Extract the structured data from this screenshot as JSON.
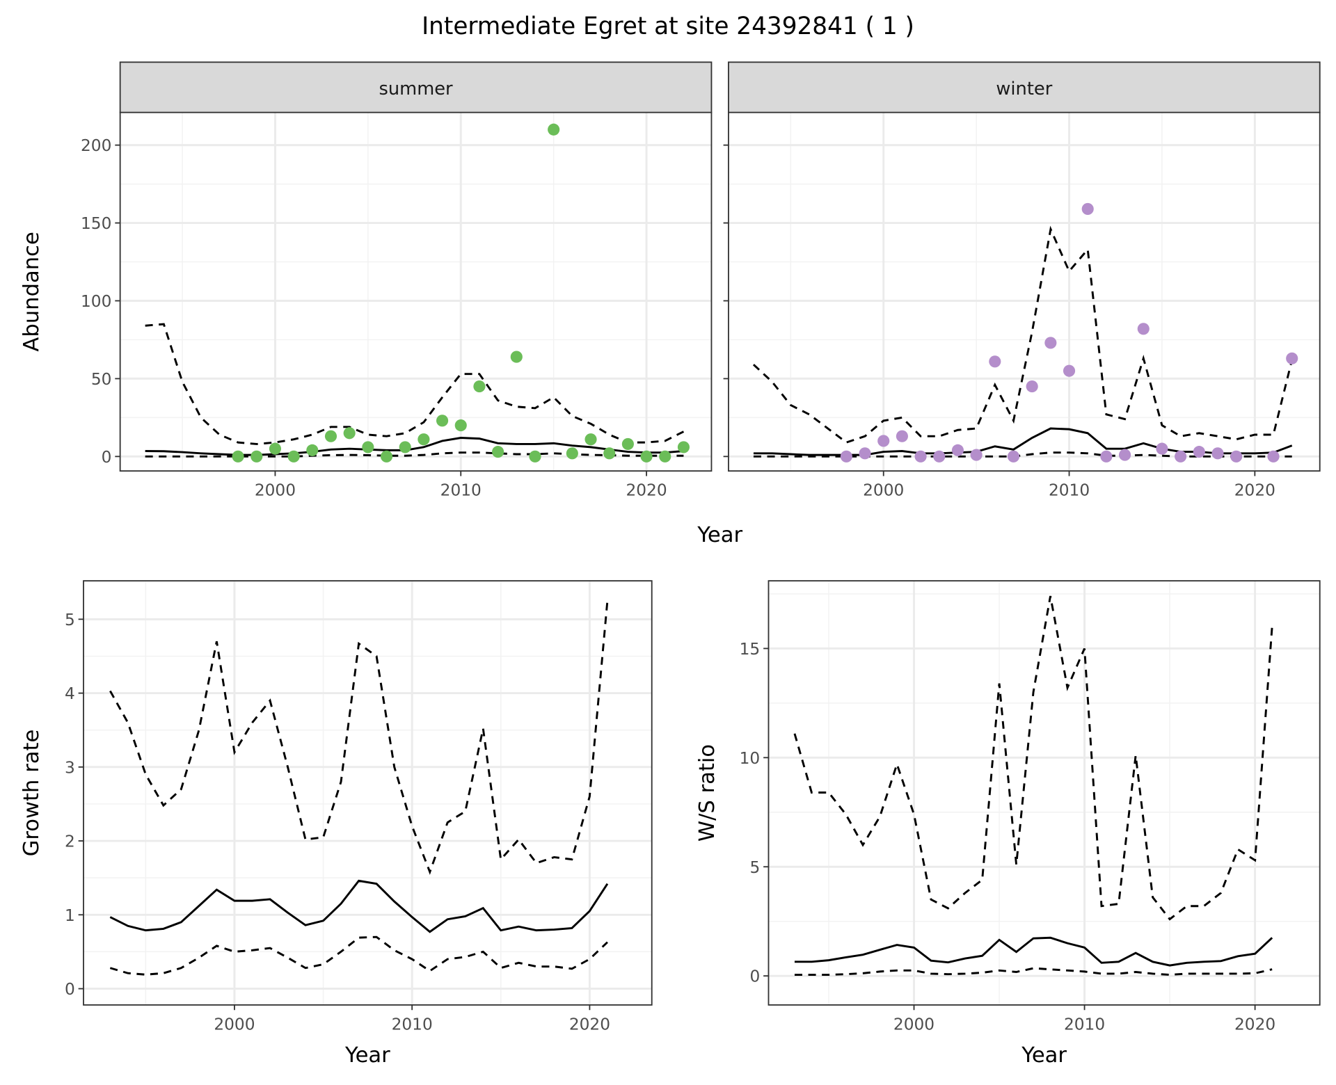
{
  "title": "Intermediate Egret at site 24392841 ( 1 )",
  "colors": {
    "summer": "#6bbd58",
    "winter": "#b48ecb"
  },
  "chart_data": [
    {
      "id": "summer",
      "type": "line+scatter",
      "strip": "summer",
      "xlabel": "",
      "ylabel": "Abundance",
      "xlim": [
        1991.65,
        2023.5
      ],
      "ylim": [
        -9.3,
        221
      ],
      "xticks": [
        2000,
        2010,
        2020
      ],
      "xtick_labels": [
        "2000",
        "2010",
        "2020"
      ],
      "yticks": [
        0,
        50,
        100,
        150,
        200
      ],
      "ytick_labels": [
        "0",
        "50",
        "100",
        "150",
        "200"
      ],
      "point_color": "summer",
      "line_x": [
        1993,
        1994,
        1995,
        1996,
        1997,
        1998,
        1999,
        2000,
        2001,
        2002,
        2003,
        2004,
        2005,
        2006,
        2007,
        2008,
        2009,
        2010,
        2011,
        2012,
        2013,
        2014,
        2015,
        2016,
        2017,
        2018,
        2019,
        2020,
        2021,
        2022
      ],
      "upper": [
        84,
        85,
        48,
        25,
        14,
        9,
        8,
        9,
        11,
        14,
        19,
        19,
        14,
        13,
        15,
        22,
        38,
        53,
        53,
        36,
        32,
        31,
        38,
        26,
        21,
        14,
        9,
        9,
        10,
        16
      ],
      "mean": [
        3.5,
        3.4,
        2.8,
        2,
        1.5,
        1,
        1,
        1.5,
        2,
        3,
        4.5,
        5,
        4.5,
        4,
        4,
        6,
        10,
        12,
        11.5,
        8.5,
        8,
        8,
        8.5,
        7,
        6,
        4.5,
        3,
        2.5,
        2.5,
        3.5
      ],
      "lower": [
        0,
        0,
        0,
        0,
        0,
        0,
        0,
        0,
        0,
        0.5,
        0.8,
        1,
        0.8,
        0.5,
        0.5,
        1,
        2,
        2.5,
        2.5,
        2,
        1.5,
        1.5,
        2,
        1.5,
        1,
        0.8,
        0.5,
        0.5,
        0.5,
        0.5
      ],
      "points_x": [
        1998,
        1999,
        2000,
        2001,
        2002,
        2003,
        2004,
        2005,
        2006,
        2007,
        2008,
        2009,
        2010,
        2011,
        2012,
        2013,
        2014,
        2015,
        2016,
        2017,
        2018,
        2019,
        2020,
        2021,
        2022
      ],
      "points_y": [
        0,
        0,
        5,
        0,
        4,
        13,
        15,
        6,
        0,
        6,
        11,
        23,
        20,
        45,
        3,
        64,
        0,
        210,
        2,
        11,
        2,
        8,
        0,
        0,
        6
      ]
    },
    {
      "id": "winter",
      "type": "line+scatter",
      "strip": "winter",
      "xlabel": "",
      "ylabel": "",
      "xlim": [
        1991.65,
        2023.5
      ],
      "ylim": [
        -9.3,
        221
      ],
      "xticks": [
        2000,
        2010,
        2020
      ],
      "xtick_labels": [
        "2000",
        "2010",
        "2020"
      ],
      "yticks": [
        0,
        50,
        100,
        150,
        200
      ],
      "ytick_labels": [],
      "point_color": "winter",
      "line_x": [
        1993,
        1994,
        1995,
        1996,
        1997,
        1998,
        1999,
        2000,
        2001,
        2002,
        2003,
        2004,
        2005,
        2006,
        2007,
        2008,
        2009,
        2010,
        2011,
        2012,
        2013,
        2014,
        2015,
        2016,
        2017,
        2018,
        2019,
        2020,
        2021,
        2022
      ],
      "upper": [
        59,
        48,
        33,
        27,
        18,
        9,
        13,
        23,
        25,
        13,
        13,
        17,
        18,
        46,
        23,
        80,
        146,
        119,
        133,
        27,
        24,
        63,
        20,
        13,
        15,
        13,
        11,
        14,
        14,
        62
      ],
      "mean": [
        2,
        2,
        1.5,
        1,
        1,
        1,
        1,
        3,
        3.5,
        2,
        2,
        2.5,
        3,
        6.5,
        4.5,
        12,
        18,
        17.5,
        15,
        5,
        5,
        8.5,
        5,
        3,
        3,
        2,
        2,
        2,
        2.5,
        7
      ],
      "lower": [
        0,
        0,
        0,
        0,
        0,
        0,
        0,
        0,
        0,
        0,
        0,
        0,
        0,
        0,
        0,
        1.5,
        2.5,
        2.5,
        2,
        0.5,
        0.5,
        1,
        0.5,
        0,
        0,
        0,
        0,
        0,
        0,
        0
      ],
      "points_x": [
        1998,
        1999,
        2000,
        2001,
        2002,
        2003,
        2004,
        2005,
        2006,
        2007,
        2008,
        2009,
        2010,
        2011,
        2012,
        2013,
        2014,
        2015,
        2016,
        2017,
        2018,
        2019,
        2021,
        2022
      ],
      "points_y": [
        0,
        2,
        10,
        13,
        0,
        0,
        4,
        1,
        61,
        0,
        45,
        73,
        55,
        159,
        0,
        1,
        82,
        5,
        0,
        3,
        2,
        0,
        0,
        63
      ]
    },
    {
      "id": "growth",
      "type": "line",
      "xlabel": "Year",
      "ylabel": "Growth rate",
      "xlim": [
        1991.5,
        2023.5
      ],
      "ylim": [
        -0.22,
        5.52
      ],
      "xticks": [
        2000,
        2010,
        2020
      ],
      "xtick_labels": [
        "2000",
        "2010",
        "2020"
      ],
      "yticks": [
        0,
        1,
        2,
        3,
        4,
        5
      ],
      "ytick_labels": [
        "0",
        "1",
        "2",
        "3",
        "4",
        "5"
      ],
      "line_x": [
        1993,
        1994,
        1995,
        1996,
        1997,
        1998,
        1999,
        2000,
        2001,
        2002,
        2003,
        2004,
        2005,
        2006,
        2007,
        2008,
        2009,
        2010,
        2011,
        2012,
        2013,
        2014,
        2015,
        2016,
        2017,
        2018,
        2019,
        2020,
        2021
      ],
      "upper": [
        4.03,
        3.6,
        2.9,
        2.48,
        2.7,
        3.5,
        4.7,
        3.2,
        3.6,
        3.9,
        3.0,
        2.02,
        2.05,
        2.8,
        4.67,
        4.5,
        3.0,
        2.2,
        1.58,
        2.25,
        2.4,
        3.52,
        1.75,
        2.02,
        1.7,
        1.78,
        1.75,
        2.6,
        5.25
      ],
      "mean": [
        0.97,
        0.85,
        0.79,
        0.81,
        0.9,
        1.12,
        1.34,
        1.19,
        1.19,
        1.21,
        1.03,
        0.86,
        0.92,
        1.15,
        1.46,
        1.42,
        1.18,
        0.97,
        0.77,
        0.94,
        0.98,
        1.09,
        0.79,
        0.84,
        0.79,
        0.8,
        0.82,
        1.05,
        1.42
      ],
      "lower": [
        0.28,
        0.21,
        0.19,
        0.21,
        0.28,
        0.42,
        0.58,
        0.5,
        0.52,
        0.55,
        0.42,
        0.28,
        0.33,
        0.5,
        0.69,
        0.7,
        0.52,
        0.4,
        0.24,
        0.4,
        0.43,
        0.5,
        0.28,
        0.35,
        0.3,
        0.3,
        0.27,
        0.4,
        0.63
      ]
    },
    {
      "id": "ratio",
      "type": "line",
      "xlabel": "Year",
      "ylabel": "W/S ratio",
      "xlim": [
        1991.47,
        2023.8
      ],
      "ylim": [
        -1.33,
        18.1
      ],
      "xticks": [
        2000,
        2010,
        2020
      ],
      "xtick_labels": [
        "2000",
        "2010",
        "2020"
      ],
      "yticks": [
        0,
        5,
        10,
        15
      ],
      "ytick_labels": [
        "0",
        "5",
        "10",
        "15"
      ],
      "line_x": [
        1993,
        1994,
        1995,
        1996,
        1997,
        1998,
        1999,
        2000,
        2001,
        2002,
        2003,
        2004,
        2005,
        2006,
        2007,
        2008,
        2009,
        2010,
        2011,
        2012,
        2013,
        2014,
        2015,
        2016,
        2017,
        2018,
        2019,
        2020,
        2021
      ],
      "upper": [
        11.1,
        8.4,
        8.4,
        7.4,
        6.0,
        7.3,
        9.7,
        7.4,
        3.5,
        3.1,
        3.8,
        4.4,
        13.4,
        5.1,
        13.0,
        17.4,
        13.2,
        15.0,
        3.2,
        3.3,
        10.1,
        3.6,
        2.6,
        3.2,
        3.2,
        3.8,
        5.8,
        5.3,
        16.0
      ],
      "mean": [
        0.65,
        0.65,
        0.72,
        0.85,
        0.97,
        1.2,
        1.42,
        1.3,
        0.7,
        0.62,
        0.8,
        0.92,
        1.65,
        1.1,
        1.72,
        1.75,
        1.5,
        1.3,
        0.6,
        0.65,
        1.05,
        0.65,
        0.48,
        0.6,
        0.65,
        0.68,
        0.9,
        1.02,
        1.75
      ],
      "lower": [
        0.05,
        0.05,
        0.05,
        0.08,
        0.12,
        0.2,
        0.25,
        0.25,
        0.1,
        0.08,
        0.1,
        0.15,
        0.25,
        0.18,
        0.35,
        0.3,
        0.25,
        0.2,
        0.1,
        0.1,
        0.18,
        0.1,
        0.05,
        0.1,
        0.1,
        0.1,
        0.1,
        0.12,
        0.3
      ]
    }
  ],
  "shared_xlabel_top": "Year"
}
